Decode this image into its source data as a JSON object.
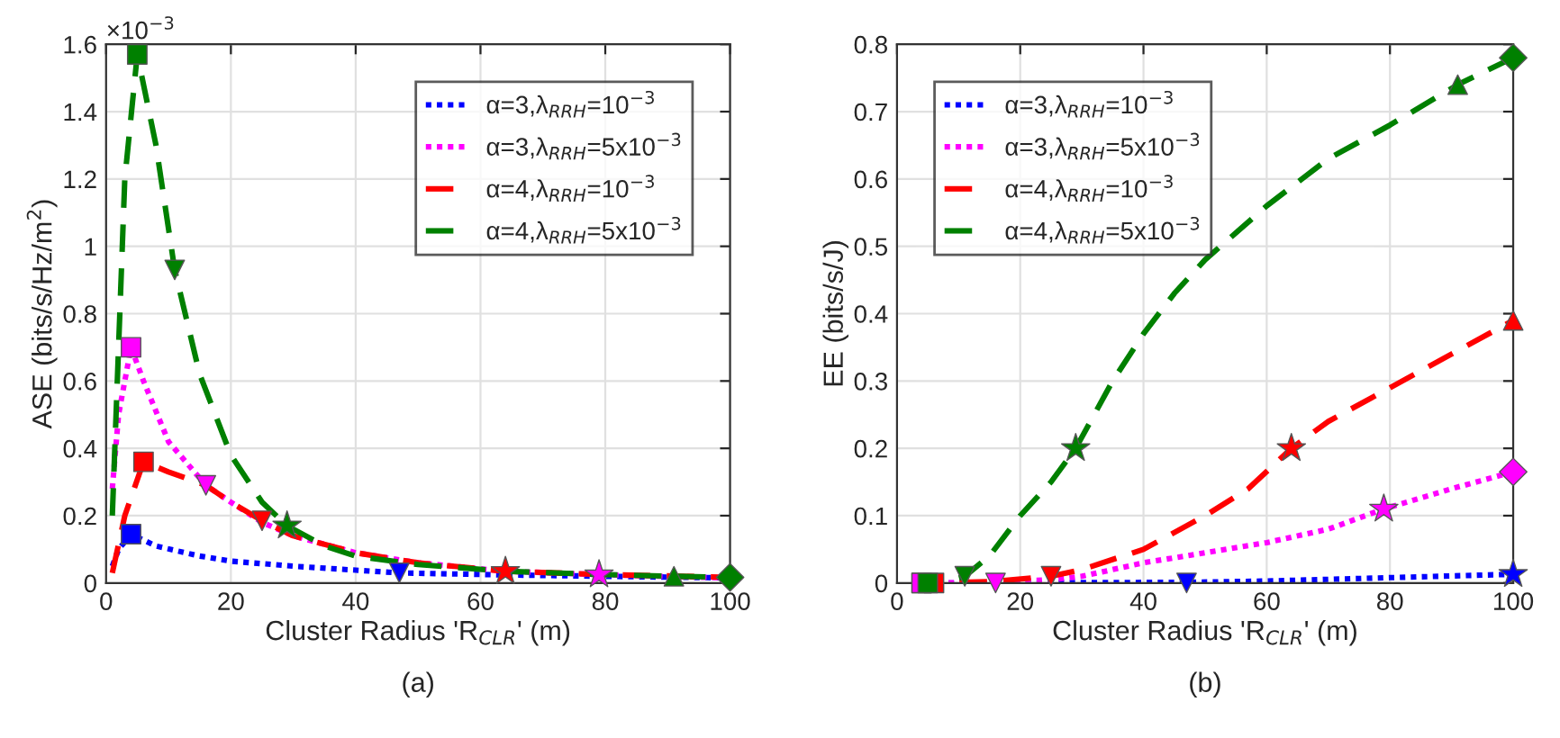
{
  "chart_data": [
    {
      "type": "line",
      "xlabel": "Cluster Radius 'R$_{CLR}$' (m)",
      "ylabel": "ASE (bits/s/Hz/m$^{2}$)",
      "annotations": [
        "×10$^{−3}$",
        "(a)"
      ],
      "xlim": [
        0,
        100
      ],
      "xticks": [
        0,
        20,
        40,
        60,
        80,
        100
      ],
      "ylim": [
        0,
        1.6
      ],
      "yticks": [
        0,
        0.2,
        0.4,
        0.6,
        0.8,
        1,
        1.2,
        1.4,
        1.6
      ],
      "grid": true,
      "legend": "top right",
      "marker": "none",
      "series": [
        {
          "name": "α=3,λ$_{RRH}$=10$^{−3}$",
          "color": "#0000ff",
          "line_style": "dotted",
          "x": [
            1,
            2,
            4,
            8,
            15,
            20,
            30,
            47,
            64,
            80,
            100
          ],
          "values": [
            0.05,
            0.1,
            0.145,
            0.11,
            0.08,
            0.065,
            0.05,
            0.03,
            0.024,
            0.02,
            0.015
          ]
        },
        {
          "name": "α=3,λ$_{RRH}$=5x10$^{−3}$",
          "color": "#ff00ff",
          "line_style": "dotted",
          "x": [
            1,
            2,
            4,
            6,
            10,
            16,
            20,
            25,
            30,
            40,
            50,
            64,
            79,
            100
          ],
          "values": [
            0.28,
            0.5,
            0.7,
            0.6,
            0.42,
            0.29,
            0.24,
            0.18,
            0.14,
            0.09,
            0.06,
            0.035,
            0.025,
            0.015
          ]
        },
        {
          "name": "α=4,λ$_{RRH}$=10$^{−3}$",
          "color": "#ff0000",
          "line_style": "dashed",
          "x": [
            1,
            3,
            6,
            10,
            16,
            20,
            25,
            30,
            40,
            50,
            64,
            80,
            100
          ],
          "values": [
            0.03,
            0.2,
            0.36,
            0.33,
            0.29,
            0.24,
            0.185,
            0.14,
            0.09,
            0.06,
            0.035,
            0.025,
            0.017
          ]
        },
        {
          "name": "α=4,λ$_{RRH}$=5x10$^{−3}$",
          "color": "#008000",
          "line_style": "dashed",
          "x": [
            1,
            3,
            5,
            8,
            11,
            15,
            20,
            25,
            29,
            35,
            40,
            50,
            64,
            80,
            91,
            100
          ],
          "values": [
            0.2,
            1.2,
            1.57,
            1.3,
            0.93,
            0.62,
            0.38,
            0.24,
            0.17,
            0.11,
            0.08,
            0.055,
            0.035,
            0.025,
            0.02,
            0.017
          ]
        },
        {
          "type": "scatter",
          "marker": "square",
          "x": [
            4,
            4,
            6,
            5
          ],
          "values": [
            0.145,
            0.7,
            0.36,
            1.57
          ],
          "colors": [
            "#0000ff",
            "#ff00ff",
            "#ff0000",
            "#008000"
          ]
        },
        {
          "type": "scatter",
          "marker": "triangle_down",
          "x": [
            47,
            16,
            25,
            11
          ],
          "values": [
            0.03,
            0.29,
            0.185,
            0.93
          ],
          "colors": [
            "#0000ff",
            "#ff00ff",
            "#ff0000",
            "#008000"
          ]
        },
        {
          "type": "scatter",
          "marker": "star",
          "x": [
            79,
            64,
            29
          ],
          "values": [
            0.025,
            0.035,
            0.17
          ],
          "colors": [
            "#ff00ff",
            "#ff0000",
            "#008000"
          ]
        },
        {
          "type": "scatter",
          "marker": "triangle",
          "x": [
            91
          ],
          "values": [
            0.02
          ],
          "colors": [
            "#008000"
          ]
        },
        {
          "type": "scatter",
          "marker": "diamond",
          "x": [
            100
          ],
          "values": [
            0.017
          ],
          "colors": [
            "#008000"
          ]
        }
      ]
    },
    {
      "type": "line",
      "xlabel": "Cluster Radius 'R$_{CLR}$' (m)",
      "ylabel": "EE (bits/s/J)",
      "annotations": [
        "(b)"
      ],
      "xlim": [
        0,
        100
      ],
      "xticks": [
        0,
        20,
        40,
        60,
        80,
        100
      ],
      "ylim": [
        0,
        0.8
      ],
      "yticks": [
        0,
        0.1,
        0.2,
        0.3,
        0.4,
        0.5,
        0.6,
        0.7,
        0.8
      ],
      "grid": true,
      "legend": "top left",
      "marker": "none",
      "series": [
        {
          "name": "α=3,λ$_{RRH}$=10$^{−3}$",
          "color": "#0000ff",
          "line_style": "dotted",
          "x": [
            3,
            47,
            60,
            80,
            100
          ],
          "values": [
            0,
            0.001,
            0.003,
            0.008,
            0.013
          ]
        },
        {
          "name": "α=3,λ$_{RRH}$=5x10$^{−3}$",
          "color": "#ff00ff",
          "line_style": "dotted",
          "x": [
            3,
            16,
            25,
            30,
            40,
            50,
            60,
            70,
            79,
            90,
            100
          ],
          "values": [
            0,
            0.001,
            0.005,
            0.01,
            0.03,
            0.045,
            0.06,
            0.08,
            0.11,
            0.14,
            0.165
          ]
        },
        {
          "name": "α=4,λ$_{RRH}$=10$^{−3}$",
          "color": "#ff0000",
          "line_style": "dashed",
          "x": [
            3,
            6,
            15,
            25,
            30,
            40,
            50,
            57,
            64,
            70,
            80,
            90,
            100
          ],
          "values": [
            0,
            0,
            0.002,
            0.01,
            0.02,
            0.05,
            0.1,
            0.14,
            0.2,
            0.24,
            0.29,
            0.34,
            0.39
          ]
        },
        {
          "name": "α=4,λ$_{RRH}$=5x10$^{−3}$",
          "color": "#008000",
          "line_style": "dashed",
          "x": [
            3,
            5,
            8,
            11,
            15,
            20,
            25,
            29,
            35,
            40,
            45,
            50,
            60,
            70,
            80,
            91,
            100
          ],
          "values": [
            0,
            0,
            0.002,
            0.01,
            0.04,
            0.1,
            0.15,
            0.2,
            0.3,
            0.37,
            0.43,
            0.48,
            0.56,
            0.63,
            0.68,
            0.74,
            0.78
          ]
        },
        {
          "type": "scatter",
          "marker": "square",
          "x": [
            4,
            4,
            6,
            5
          ],
          "values": [
            0,
            0,
            0,
            0
          ],
          "colors": [
            "#0000ff",
            "#ff00ff",
            "#ff0000",
            "#008000"
          ]
        },
        {
          "type": "scatter",
          "marker": "triangle_down",
          "x": [
            47,
            16,
            25,
            11
          ],
          "values": [
            0,
            0,
            0.01,
            0.01
          ],
          "colors": [
            "#0000ff",
            "#ff00ff",
            "#ff0000",
            "#008000"
          ]
        },
        {
          "type": "scatter",
          "marker": "star",
          "x": [
            100,
            79,
            64,
            29
          ],
          "values": [
            0.013,
            0.11,
            0.2,
            0.2
          ],
          "colors": [
            "#0000ff",
            "#ff00ff",
            "#ff0000",
            "#008000"
          ]
        },
        {
          "type": "scatter",
          "marker": "triangle",
          "x": [
            100,
            91
          ],
          "values": [
            0.39,
            0.74
          ],
          "colors": [
            "#ff0000",
            "#008000"
          ]
        },
        {
          "type": "scatter",
          "marker": "diamond",
          "x": [
            100,
            100
          ],
          "values": [
            0.165,
            0.78
          ],
          "colors": [
            "#ff00ff",
            "#008000"
          ]
        }
      ]
    }
  ]
}
